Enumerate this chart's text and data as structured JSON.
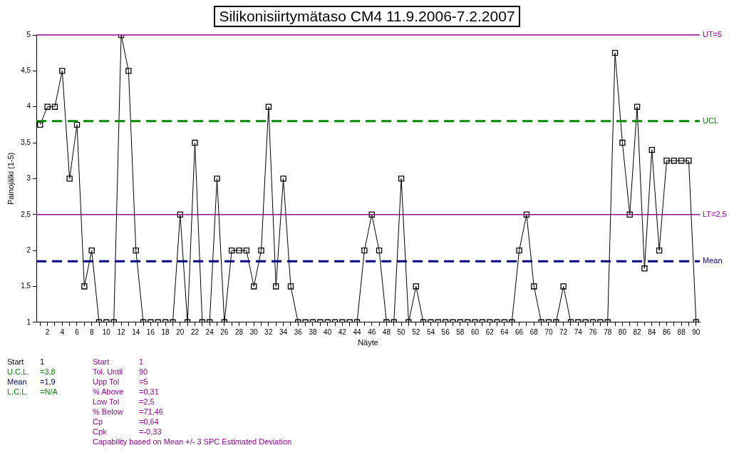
{
  "chart_data": {
    "type": "line",
    "title": "Silikonisiirtymätaso CM4 11.9.2006-7.2.2007",
    "xlabel": "Näyte",
    "ylabel": "Painojälki (1-5)",
    "x": [
      1,
      2,
      3,
      4,
      5,
      6,
      7,
      8,
      9,
      10,
      11,
      12,
      13,
      14,
      15,
      16,
      17,
      18,
      19,
      20,
      21,
      22,
      23,
      24,
      25,
      26,
      27,
      28,
      29,
      30,
      31,
      32,
      33,
      34,
      35,
      36,
      37,
      38,
      39,
      40,
      41,
      42,
      43,
      44,
      45,
      46,
      47,
      48,
      49,
      50,
      51,
      52,
      53,
      54,
      55,
      56,
      57,
      58,
      59,
      60,
      61,
      62,
      63,
      64,
      65,
      66,
      67,
      68,
      69,
      70,
      71,
      72,
      73,
      74,
      75,
      76,
      77,
      78,
      79,
      80,
      81,
      82,
      83,
      84,
      85,
      86,
      87,
      88,
      89,
      90
    ],
    "series": [
      {
        "color": "#000000",
        "values": [
          3.75,
          4,
          4,
          4.5,
          3,
          3.75,
          1.5,
          2,
          1,
          1,
          1,
          5,
          4.5,
          2,
          1,
          1,
          1,
          1,
          1,
          2.5,
          1,
          3.5,
          1,
          1,
          3,
          1,
          2,
          2,
          2,
          1.5,
          2,
          4,
          1.5,
          3,
          1.5,
          1,
          1,
          1,
          1,
          1,
          1,
          1,
          1,
          1,
          2,
          2.5,
          2,
          1,
          1,
          3,
          1,
          1.5,
          1,
          1,
          1,
          1,
          1,
          1,
          1,
          1,
          1,
          1,
          1,
          1,
          1,
          2,
          2.5,
          1.5,
          1,
          1,
          1,
          1.5,
          1,
          1,
          1,
          1,
          1,
          1,
          4.75,
          3.5,
          2.5,
          4,
          1.75,
          3.4,
          2,
          3.25,
          3.25,
          3.25,
          3.25,
          1
        ]
      }
    ],
    "marker": "square",
    "line_style": "solid",
    "xlim": [
      0.5,
      90.5
    ],
    "xticks": [
      {
        "value": 1,
        "label": null
      },
      2,
      {
        "value": 3,
        "label": null
      },
      4,
      {
        "value": 5,
        "label": null
      },
      6,
      {
        "value": 7,
        "label": null
      },
      8,
      {
        "value": 9,
        "label": null
      },
      10,
      {
        "value": 11,
        "label": null
      },
      12,
      {
        "value": 13,
        "label": null
      },
      14,
      {
        "value": 15,
        "label": null
      },
      16,
      {
        "value": 17,
        "label": null
      },
      18,
      {
        "value": 19,
        "label": null
      },
      20,
      {
        "value": 21,
        "label": null
      },
      22,
      {
        "value": 23,
        "label": null
      },
      24,
      {
        "value": 25,
        "label": null
      },
      26,
      {
        "value": 27,
        "label": null
      },
      28,
      {
        "value": 29,
        "label": null
      },
      30,
      {
        "value": 31,
        "label": null
      },
      32,
      {
        "value": 33,
        "label": null
      },
      34,
      {
        "value": 35,
        "label": null
      },
      36,
      {
        "value": 37,
        "label": null
      },
      38,
      {
        "value": 39,
        "label": null
      },
      40,
      {
        "value": 41,
        "label": null
      },
      42,
      {
        "value": 43,
        "label": null
      },
      44,
      {
        "value": 45,
        "label": null
      },
      46,
      {
        "value": 47,
        "label": null
      },
      48,
      {
        "value": 49,
        "label": null
      },
      50,
      {
        "value": 51,
        "label": null
      },
      52,
      {
        "value": 53,
        "label": null
      },
      54,
      {
        "value": 55,
        "label": null
      },
      56,
      {
        "value": 57,
        "label": null
      },
      58,
      {
        "value": 59,
        "label": null
      },
      60,
      {
        "value": 61,
        "label": null
      },
      62,
      {
        "value": 63,
        "label": null
      },
      64,
      {
        "value": 65,
        "label": null
      },
      66,
      {
        "value": 67,
        "label": null
      },
      68,
      {
        "value": 69,
        "label": null
      },
      70,
      {
        "value": 71,
        "label": null
      },
      72,
      {
        "value": 73,
        "label": null
      },
      74,
      {
        "value": 75,
        "label": null
      },
      76,
      {
        "value": 77,
        "label": null
      },
      78,
      {
        "value": 79,
        "label": null
      },
      80,
      {
        "value": 81,
        "label": null
      },
      82,
      {
        "value": 83,
        "label": null
      },
      84,
      {
        "value": 85,
        "label": null
      },
      86,
      {
        "value": 87,
        "label": null
      },
      88,
      {
        "value": 89,
        "label": null
      },
      90
    ],
    "ylim": [
      1,
      5
    ],
    "yticks": [
      1,
      {
        "value": 1.5,
        "label": "1,5"
      },
      2,
      {
        "value": 2.5,
        "label": "2,5"
      },
      3,
      {
        "value": 3.5,
        "label": "3,5"
      },
      4,
      {
        "value": 4.5,
        "label": "4,5"
      },
      5
    ],
    "ref_lines": [
      {
        "axis": "y",
        "value": 5,
        "label": "UT=5",
        "color": "#990099",
        "line_style": "solid"
      },
      {
        "axis": "y",
        "value": 3.8,
        "label": "UCL",
        "color": "#008800",
        "line_style": "dashed"
      },
      {
        "axis": "y",
        "value": 2.5,
        "label": "LT=2,5",
        "color": "#990099",
        "line_style": "solid"
      },
      {
        "axis": "y",
        "value": 1.85,
        "label": "Mean",
        "color": "#000080",
        "line_style": "dashed"
      }
    ],
    "annotations": [
      "Start\t1",
      "U.C.L.\t=3,8",
      "Mean\t=1,9",
      "L.C.L.\t=N/A",
      "Start\t1",
      "Tol. Until\t90",
      "Upp Tol\t=5",
      "% Above\t=0,31",
      "Low Tol\t=2,5",
      "% Below\t=71,46",
      "Cp\t=0,64",
      "Cpk\t=-0,33",
      "Capability based on Mean +/- 3 SPC Estimated Deviation"
    ]
  }
}
